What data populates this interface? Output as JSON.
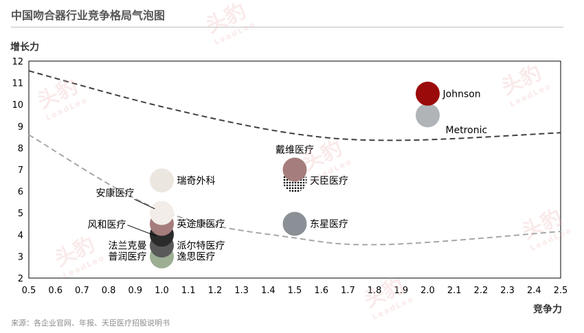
{
  "page": {
    "title": "中国吻合器行业竞争格局气泡图",
    "source": "来源：各企业官网、年报、天臣医疗招股说明书",
    "watermark": {
      "main": "头豹",
      "sub": "LeadLeo"
    }
  },
  "chart_data": {
    "type": "scatter",
    "title": "",
    "xlabel": "竞争力",
    "ylabel": "增长力",
    "xlim": [
      0.5,
      2.5
    ],
    "ylim": [
      2,
      12
    ],
    "xticks": [
      "0.5",
      "0.6",
      "0.7",
      "0.8",
      "0.9",
      "1.0",
      "1.1",
      "1.2",
      "1.3",
      "1.4",
      "1.5",
      "1.6",
      "1.7",
      "1.8",
      "1.9",
      "2.0",
      "2.1",
      "2.2",
      "2.3",
      "2.4",
      "2.5"
    ],
    "yticks": [
      "2",
      "3",
      "4",
      "5",
      "6",
      "7",
      "8",
      "9",
      "10",
      "11",
      "12"
    ],
    "grid": false,
    "points": [
      {
        "label": "Johnson",
        "x": 2.0,
        "y": 10.5,
        "color": "#9b0a0a",
        "label_side": "right"
      },
      {
        "label": "Metronic",
        "x": 2.0,
        "y": 9.5,
        "color": "#b1b4b7",
        "label_side": "right-below"
      },
      {
        "label": "戴维医疗",
        "x": 1.5,
        "y": 7.0,
        "color": "#a57d7d",
        "label_side": "above"
      },
      {
        "label": "天臣医疗",
        "x": 1.5,
        "y": 6.5,
        "color": "#000000",
        "pattern": "dots",
        "label_side": "right"
      },
      {
        "label": "东星医疗",
        "x": 1.5,
        "y": 4.5,
        "color": "#8a9095",
        "label_side": "right"
      },
      {
        "label": "瑞奇外科",
        "x": 1.0,
        "y": 6.5,
        "color": "#ebe7e0",
        "label_side": "right"
      },
      {
        "label": "安康医疗",
        "x": 1.0,
        "y": 5.0,
        "color": "#f2ede8",
        "label_side": "above-left-leader"
      },
      {
        "label": "风和医疗",
        "x": 1.0,
        "y": 4.0,
        "color": "#2b2b2b",
        "label_side": "left-leader"
      },
      {
        "label": "英途康医疗",
        "x": 1.0,
        "y": 4.5,
        "color": "#a57d7d",
        "label_side": "right"
      },
      {
        "label": "法兰克曼",
        "x": 1.0,
        "y": 3.5,
        "color": "#595959",
        "label_side": "left"
      },
      {
        "label": "派尔特医疗",
        "x": 1.0,
        "y": 3.5,
        "color": "#595959",
        "label_side": "right"
      },
      {
        "label": "普润医疗",
        "x": 1.0,
        "y": 3.0,
        "color": "#9caf93",
        "label_side": "left"
      },
      {
        "label": "逸思医疗",
        "x": 1.0,
        "y": 3.0,
        "color": "#9caf93",
        "label_side": "right"
      }
    ],
    "curves": [
      {
        "style": "dashed",
        "color": "#404040",
        "x": [
          0.5,
          1.0,
          1.5,
          1.9,
          2.5
        ],
        "y": [
          11.55,
          9.9,
          8.65,
          8.35,
          8.7
        ]
      },
      {
        "style": "dashed",
        "color": "#a6a6a6",
        "x": [
          0.5,
          1.0,
          1.5,
          1.85,
          2.5
        ],
        "y": [
          8.6,
          5.1,
          3.85,
          3.55,
          4.15
        ]
      }
    ]
  }
}
